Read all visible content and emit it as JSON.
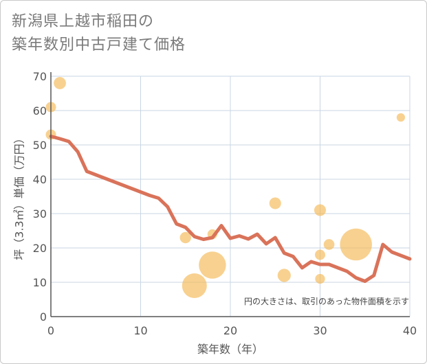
{
  "title_lines": [
    "新潟県上越市稲田の",
    "築年数別中古戸建て価格"
  ],
  "chart_data": {
    "type": "scatter+line",
    "xlabel": "築年数（年）",
    "ylabel": "坪（3.3㎡）単価（万円）",
    "xlim": [
      0,
      40
    ],
    "ylim": [
      0,
      70
    ],
    "xticks": [
      0,
      10,
      20,
      30,
      40
    ],
    "yticks": [
      0,
      10,
      20,
      30,
      40,
      50,
      60,
      70
    ],
    "xtick_labels": [
      "0",
      "10",
      "20",
      "30",
      "40"
    ],
    "ytick_labels": [
      "0",
      "10",
      "20",
      "30",
      "40",
      "50",
      "60",
      "70"
    ],
    "grid": true,
    "annotation": "円の大きさは、取引のあった物件面積を示す",
    "colors": {
      "line": "#d9735a",
      "bubble": "#f5b855",
      "grid": "#c9d6e3",
      "axis": "#555555"
    },
    "bubbles": [
      {
        "x": 0,
        "y": 61,
        "size": 1
      },
      {
        "x": 0,
        "y": 53,
        "size": 1
      },
      {
        "x": 1,
        "y": 68,
        "size": 1.4
      },
      {
        "x": 15,
        "y": 23,
        "size": 1.2
      },
      {
        "x": 16,
        "y": 9,
        "size": 4
      },
      {
        "x": 18,
        "y": 15,
        "size": 4.5
      },
      {
        "x": 18,
        "y": 24,
        "size": 0.9
      },
      {
        "x": 25,
        "y": 33,
        "size": 1.3
      },
      {
        "x": 26,
        "y": 12,
        "size": 1.6
      },
      {
        "x": 30,
        "y": 31,
        "size": 1.3
      },
      {
        "x": 30,
        "y": 18,
        "size": 1
      },
      {
        "x": 30,
        "y": 11,
        "size": 0.9
      },
      {
        "x": 31,
        "y": 21,
        "size": 1.1
      },
      {
        "x": 34,
        "y": 21,
        "size": 5.5
      },
      {
        "x": 39,
        "y": 58,
        "size": 0.6
      }
    ],
    "line": {
      "x": [
        0,
        1,
        2,
        3,
        4,
        5,
        6,
        7,
        8,
        9,
        10,
        11,
        12,
        13,
        14,
        15,
        16,
        17,
        18,
        19,
        20,
        21,
        22,
        23,
        24,
        25,
        26,
        27,
        28,
        29,
        30,
        31,
        32,
        33,
        34,
        35,
        36,
        37,
        38,
        39,
        40
      ],
      "y": [
        52.5,
        51.8,
        51,
        48,
        42.3,
        41.3,
        40.3,
        39.3,
        38.3,
        37.3,
        36.3,
        35.3,
        34.5,
        32,
        27,
        26,
        23.3,
        22.5,
        23,
        26.5,
        22.8,
        23.5,
        22.6,
        24,
        21.2,
        23,
        18.5,
        17.5,
        14.2,
        16,
        15.2,
        15.2,
        14.2,
        13.2,
        11.3,
        10.3,
        12,
        21,
        18.8,
        17.8,
        16.8
      ]
    }
  }
}
